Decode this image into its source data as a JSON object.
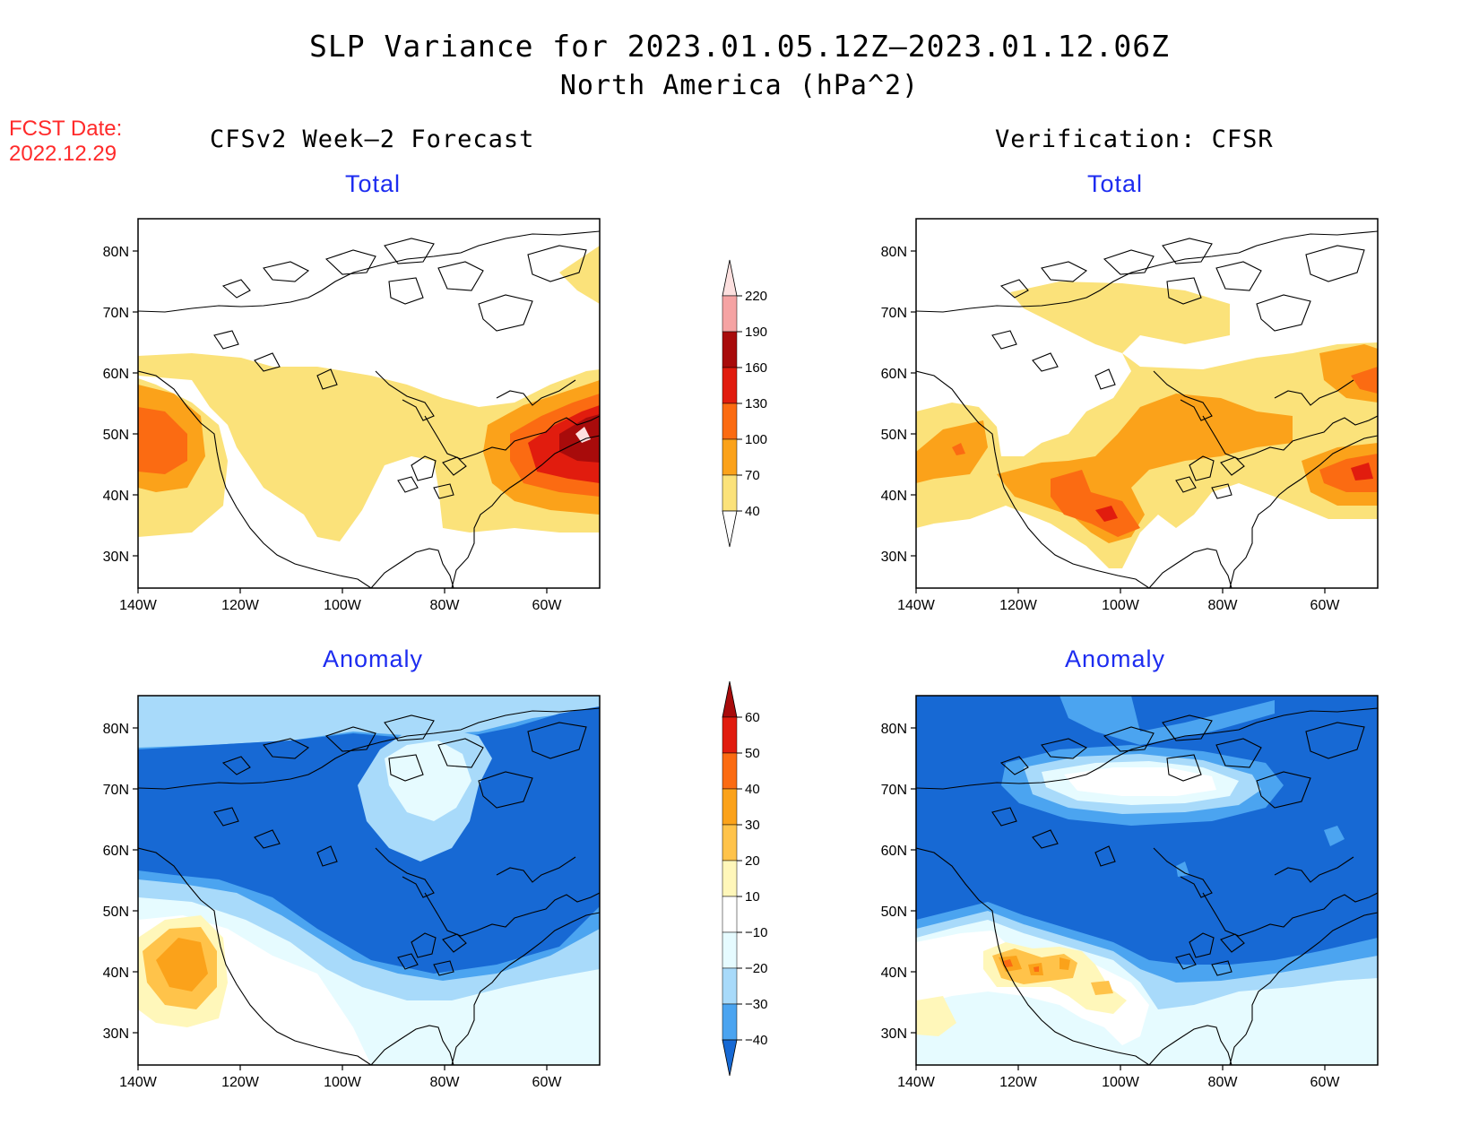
{
  "title": "SLP Variance for 2023.01.05.12Z—2023.01.12.06Z",
  "subtitle": "North America (hPa^2)",
  "fcst_date_label": "FCST Date:",
  "fcst_date_value": "2022.12.29",
  "left_column_title": "CFSv2 Week—2 Forecast",
  "right_column_title": "Verification: CFSR",
  "panel_total_title": "Total",
  "panel_anomaly_title": "Anomaly",
  "lat_ticks": [
    "80N",
    "70N",
    "60N",
    "50N",
    "40N",
    "30N"
  ],
  "lon_ticks": [
    "140W",
    "120W",
    "100W",
    "80W",
    "60W"
  ],
  "colors": {
    "total": {
      "c40": "#fbe27a",
      "c70": "#fba21a",
      "c100": "#fb6b12",
      "c130": "#e11c0e",
      "c160": "#a80b0b",
      "c190": "#f5a3a3",
      "c220": "#fde0df"
    },
    "anom": {
      "pos10": "#fff7ba",
      "pos20": "#ffc34a",
      "pos30": "#fba21a",
      "pos40": "#fb6b12",
      "pos50": "#e11c0e",
      "pos60": "#a80b0b",
      "neg10": "#e6fbff",
      "neg20": "#a8dafa",
      "neg30": "#4ba4f0",
      "neg40": "#1769d4"
    }
  },
  "legend_total": {
    "labels": [
      "220",
      "190",
      "160",
      "130",
      "100",
      "70",
      "40"
    ]
  },
  "legend_anomaly": {
    "labels": [
      "60",
      "50",
      "40",
      "30",
      "20",
      "10",
      "−10",
      "−20",
      "−30",
      "−40"
    ]
  }
}
